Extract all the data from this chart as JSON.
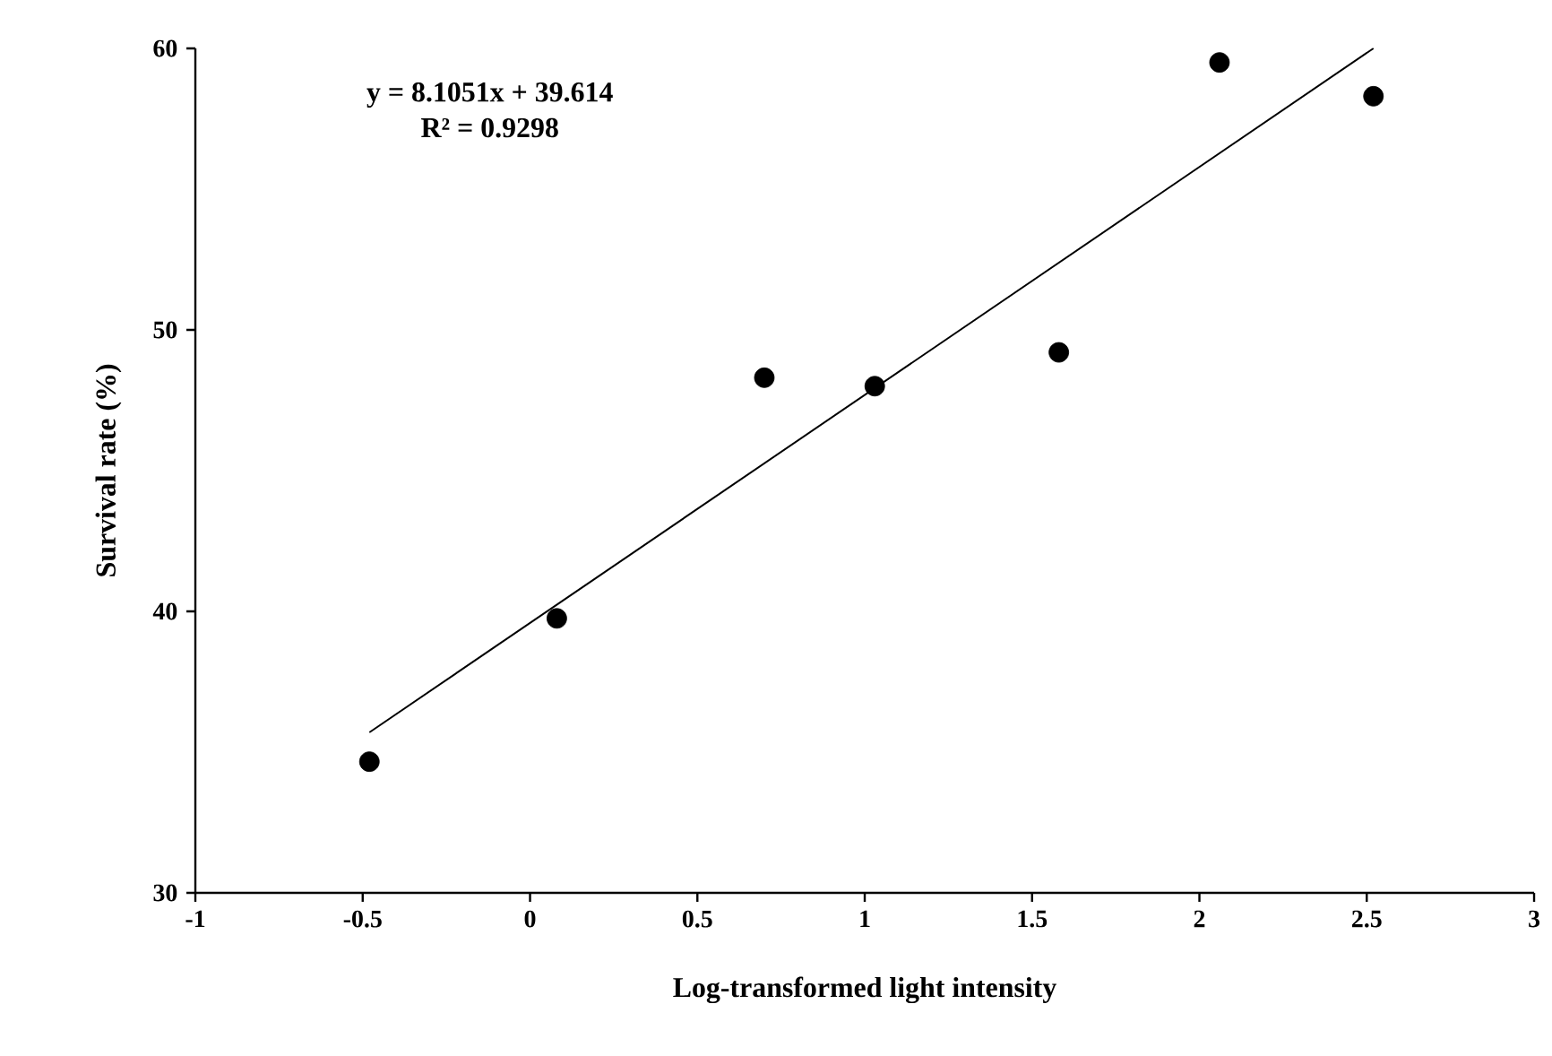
{
  "chart_data": {
    "type": "scatter",
    "xlabel": "Log-transformed  light intensity",
    "ylabel": "Survival rate (%)",
    "annotations": [
      "y = 8.1051x + 39.614",
      "R² = 0.9298"
    ],
    "xlim": [
      -1,
      3
    ],
    "xticks": [
      -1,
      -0.5,
      0,
      0.5,
      1,
      1.5,
      2,
      2.5,
      3
    ],
    "ylim": [
      30,
      60
    ],
    "yticks": [
      30,
      40,
      50,
      60
    ],
    "grid": false,
    "marker": "circle",
    "series": [
      {
        "color": "#000000",
        "x": [
          -0.48,
          0.08,
          0.7,
          1.03,
          1.58,
          2.06,
          2.52
        ],
        "values": [
          34.66,
          39.75,
          48.3,
          48.0,
          49.2,
          59.5,
          58.3
        ]
      },
      {
        "type": "line",
        "color": "#000000",
        "line_style": "solid",
        "marker": "none",
        "x": [
          -0.48,
          2.52
        ],
        "values": [
          35.7,
          60.0
        ]
      }
    ]
  }
}
